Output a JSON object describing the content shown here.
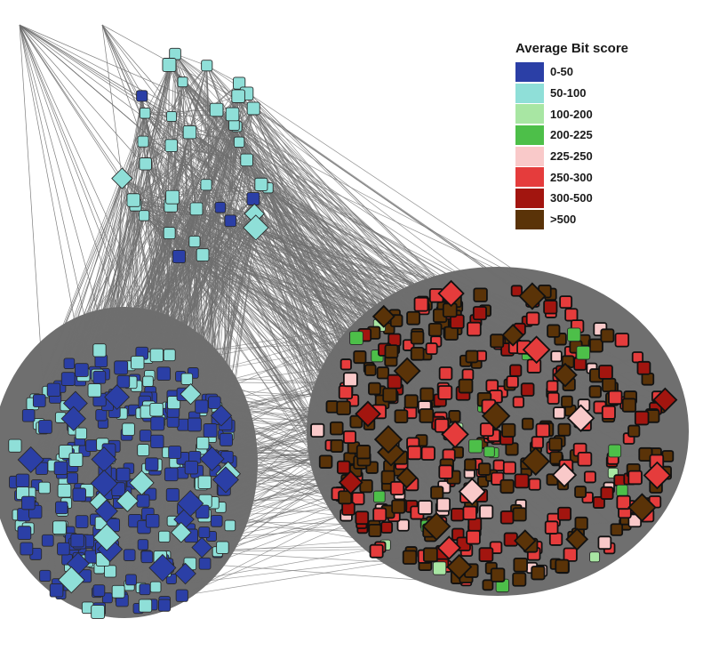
{
  "legend": {
    "title": "Average Bit score",
    "items": [
      {
        "label": "0-50",
        "color": "#2b3fa6"
      },
      {
        "label": "50-100",
        "color": "#8fdfd8"
      },
      {
        "label": "100-200",
        "color": "#a8e6a3"
      },
      {
        "label": "200-225",
        "color": "#4dbf49"
      },
      {
        "label": "225-250",
        "color": "#f9c9c9"
      },
      {
        "label": "250-300",
        "color": "#e53c3c"
      },
      {
        "label": "300-500",
        "color": "#a2150f"
      },
      {
        "label": ">500",
        "color": "#5a3308"
      }
    ]
  },
  "colors": {
    "edge": "#6f6f6f",
    "node_border_light": "#2a2a2a",
    "node_border_dark": "#111111"
  }
}
